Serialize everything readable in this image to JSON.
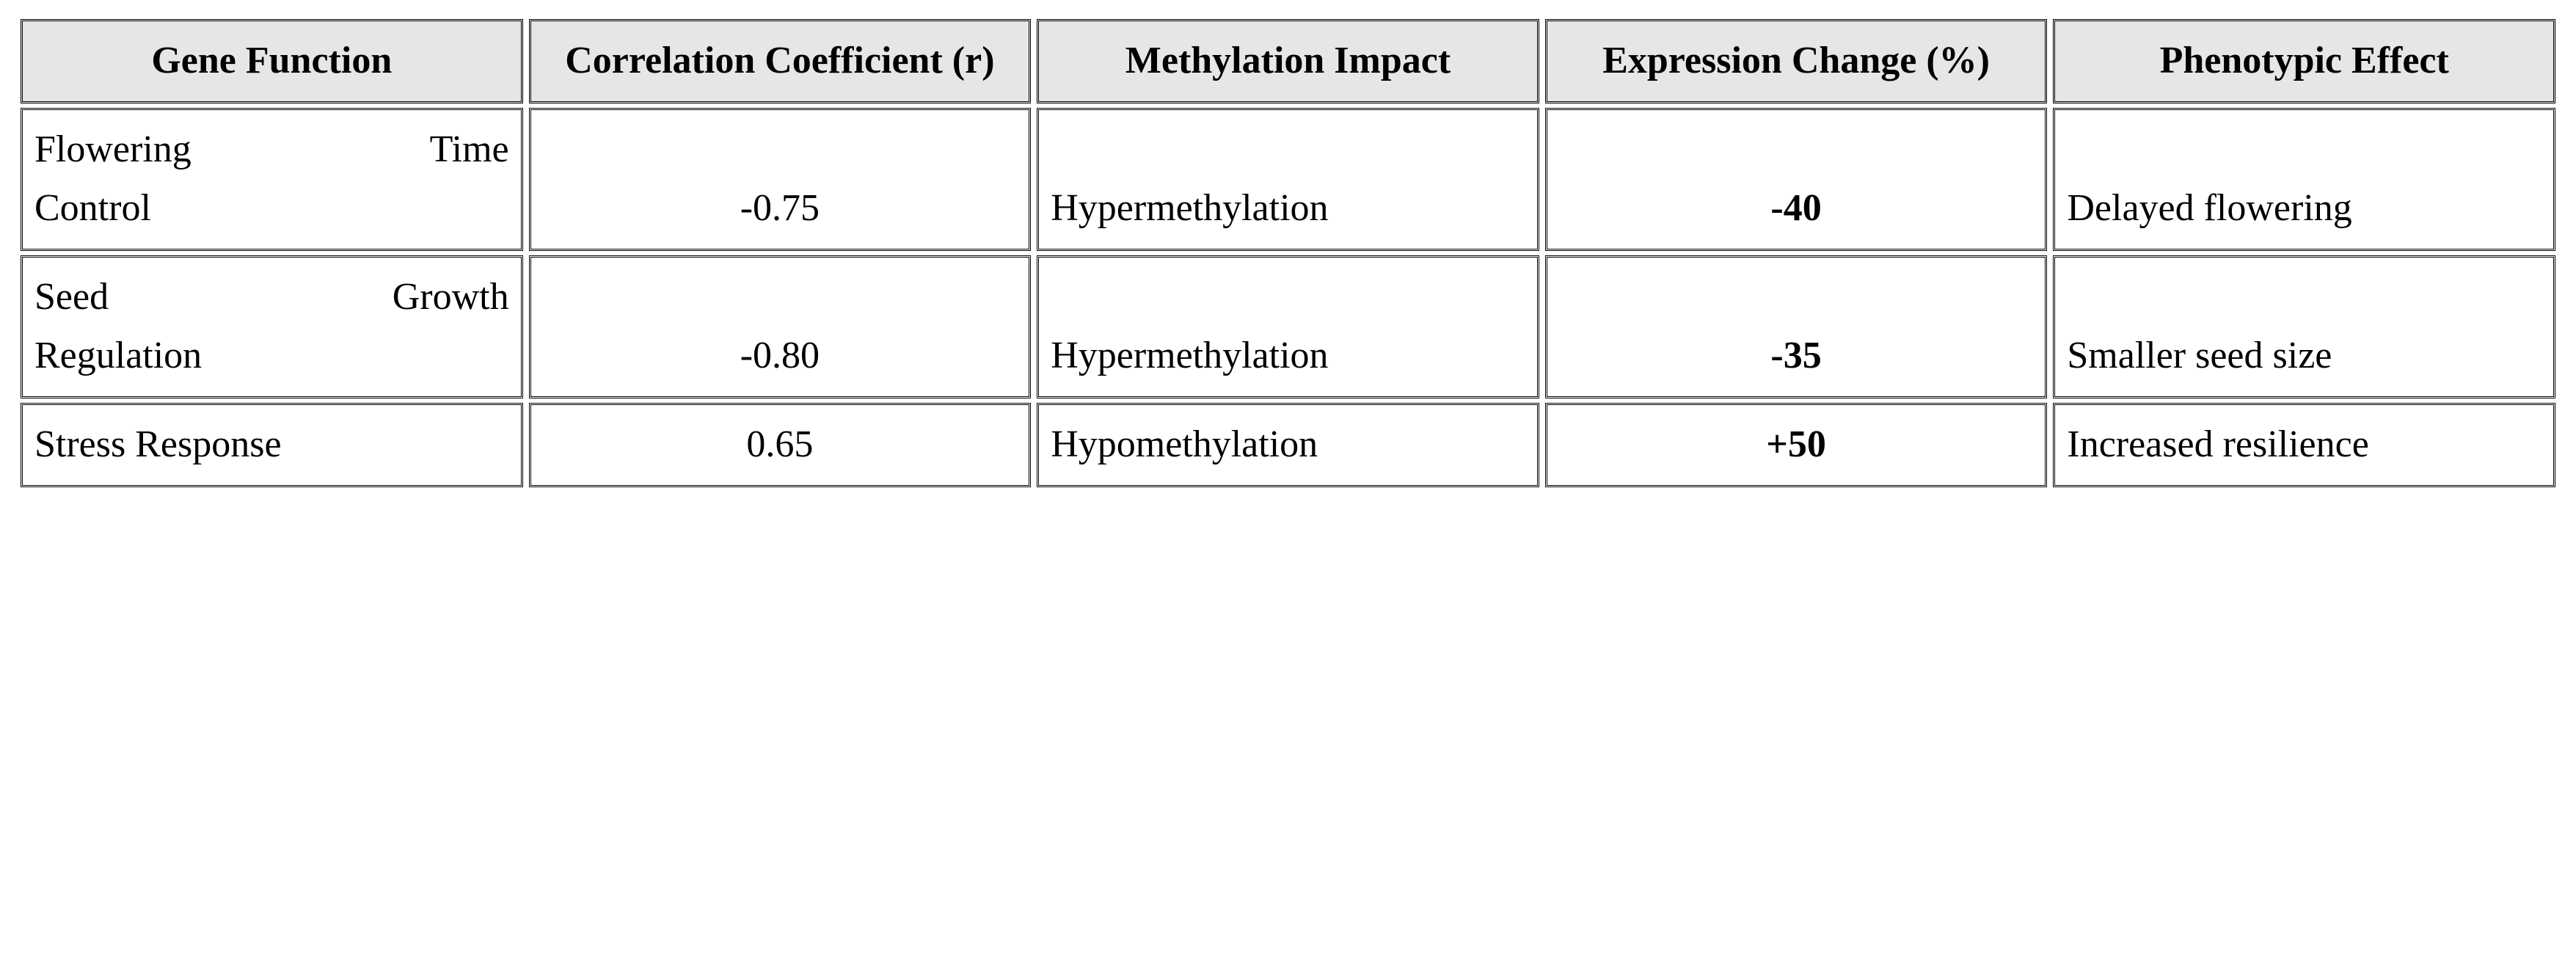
{
  "table": {
    "columns": [
      {
        "label": "Gene Function"
      },
      {
        "label": "Correlation Coefficient (r)"
      },
      {
        "label": "Methylation Impact"
      },
      {
        "label": "Expression Change (%)"
      },
      {
        "label": "Phenotypic Effect"
      }
    ],
    "rows": [
      {
        "gene_function_line1": "Flowering Time",
        "gene_function_line2": "Control",
        "correlation": "-0.75",
        "methylation": "Hypermethylation",
        "expression": "-40",
        "phenotype": "Delayed flowering"
      },
      {
        "gene_function_line1": "Seed Growth",
        "gene_function_line2": "Regulation",
        "correlation": "-0.80",
        "methylation": "Hypermethylation",
        "expression": "-35",
        "phenotype": "Smaller seed size"
      },
      {
        "gene_function_line1": "",
        "gene_function_line2": "Stress Response",
        "correlation": "0.65",
        "methylation": "Hypomethylation",
        "expression": "+50",
        "phenotype": "Increased resilience"
      }
    ],
    "style": {
      "header_bg": "#e6e6e6",
      "border_color": "#000000",
      "font_family": "Palatino Linotype",
      "base_fontsize_pt": 39,
      "background": "#ffffff"
    }
  }
}
